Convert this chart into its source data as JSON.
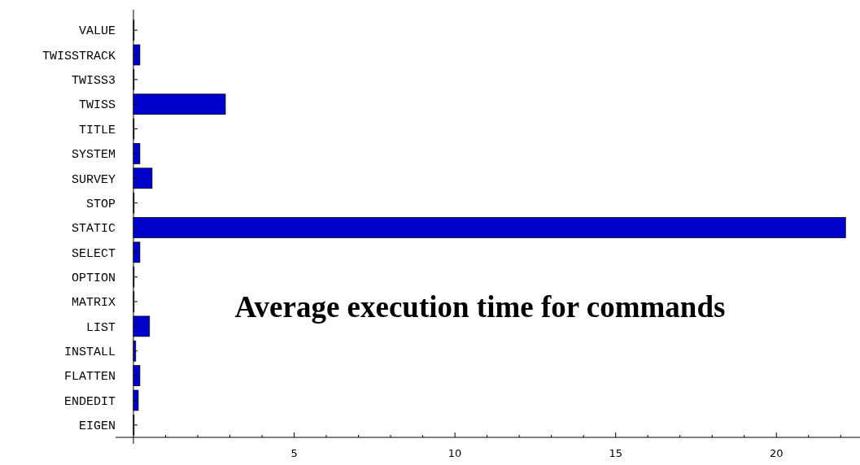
{
  "chart_data": {
    "type": "bar",
    "orientation": "horizontal",
    "title": "Average execution time for commands",
    "categories": [
      "VALUE",
      "TWISSTRACK",
      "TWISS3",
      "TWISS",
      "TITLE",
      "SYSTEM",
      "SURVEY",
      "STOP",
      "STATIC",
      "SELECT",
      "OPTION",
      "MATRIX",
      "LIST",
      "INSTALL",
      "FLATTEN",
      "ENDEDIT",
      "EIGEN"
    ],
    "values": [
      0.02,
      0.2,
      0.02,
      2.86,
      0.02,
      0.2,
      0.58,
      0.02,
      22.15,
      0.2,
      0.02,
      0.02,
      0.5,
      0.07,
      0.2,
      0.15,
      0.02
    ],
    "color": "#0000cc",
    "xlim": [
      0,
      22.6
    ],
    "xticks": [
      {
        "value": 1,
        "label": null
      },
      {
        "value": 2,
        "label": null
      },
      {
        "value": 3,
        "label": null
      },
      {
        "value": 4,
        "label": null
      },
      5,
      {
        "value": 6,
        "label": null
      },
      {
        "value": 7,
        "label": null
      },
      {
        "value": 8,
        "label": null
      },
      {
        "value": 9,
        "label": null
      },
      10,
      {
        "value": 11,
        "label": null
      },
      {
        "value": 12,
        "label": null
      },
      {
        "value": 13,
        "label": null
      },
      {
        "value": 14,
        "label": null
      },
      15,
      {
        "value": 16,
        "label": null
      },
      {
        "value": 17,
        "label": null
      },
      {
        "value": 18,
        "label": null
      },
      {
        "value": 19,
        "label": null
      },
      20,
      {
        "value": 21,
        "label": null
      },
      {
        "value": 22,
        "label": null
      }
    ],
    "grid": false
  }
}
